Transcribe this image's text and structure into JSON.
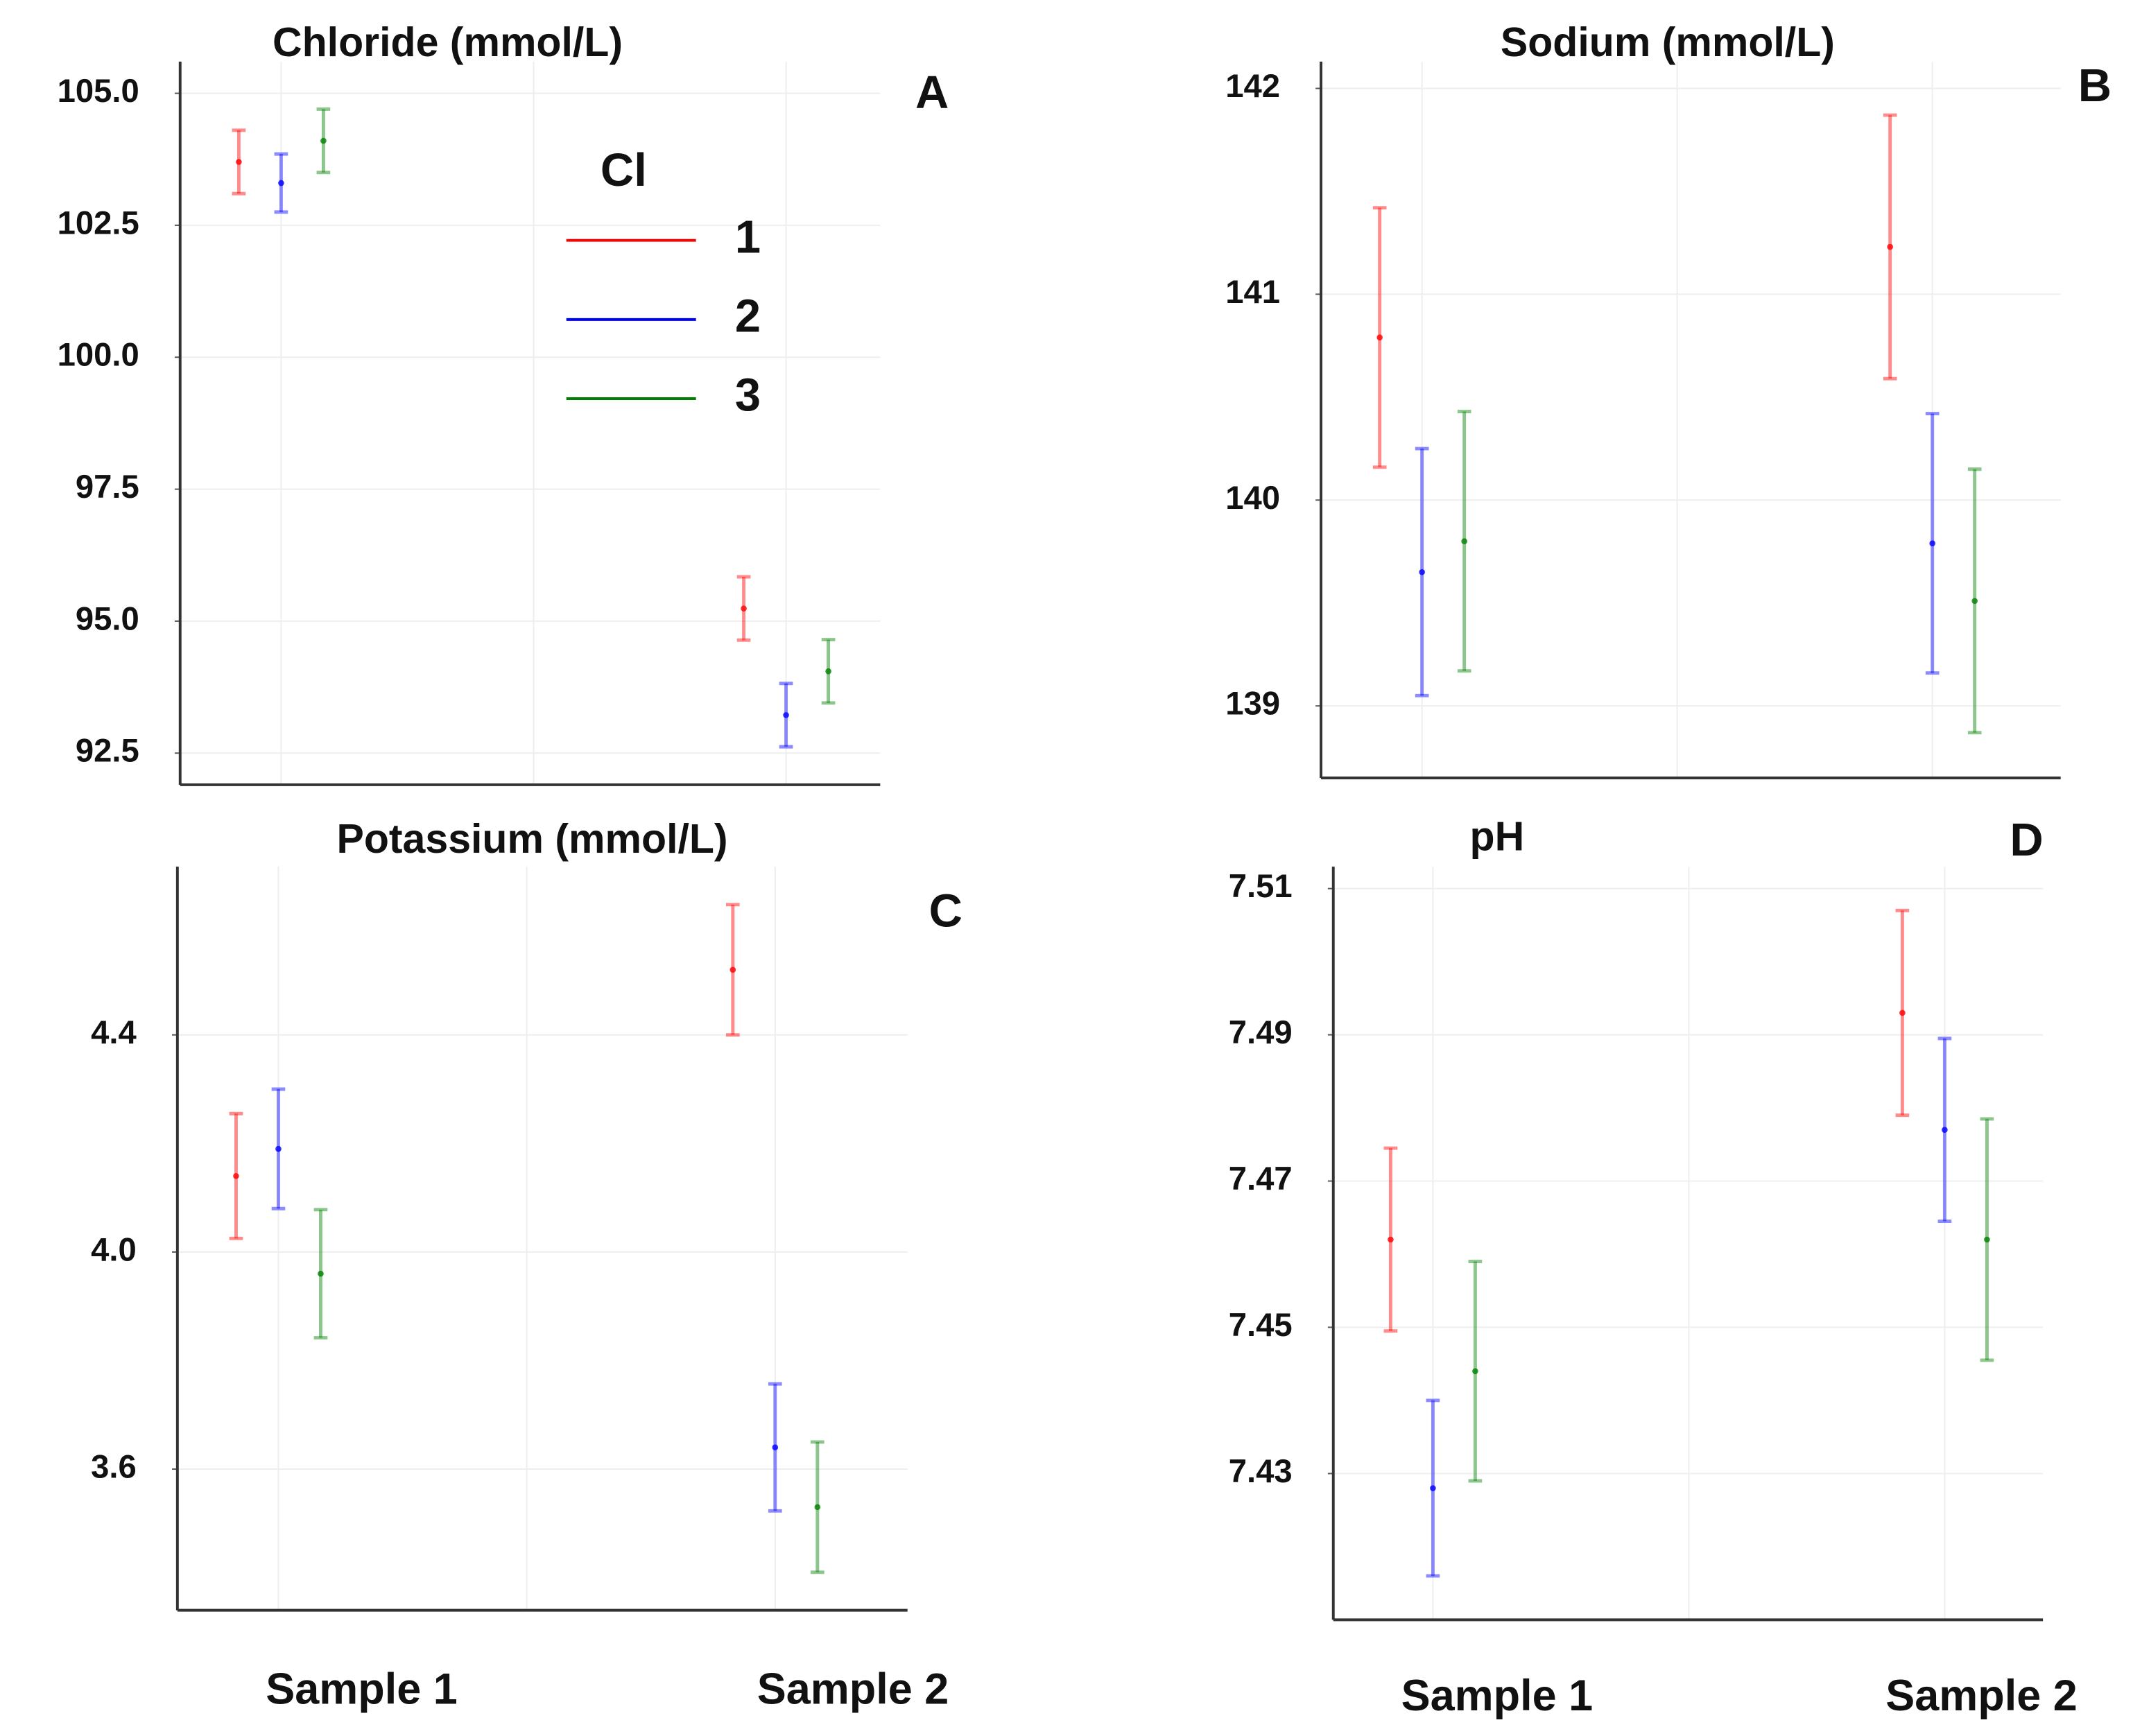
{
  "chart_data": [
    {
      "type": "errorbar",
      "title": "Chloride (mmol/L)",
      "panel_label": "A",
      "categories": [
        null,
        null
      ],
      "legend_title": "Cl",
      "legend": "upper right",
      "series": [
        {
          "name": "1",
          "color": "#ff0000",
          "values": [
            103.7,
            95.24
          ],
          "errors": [
            0.6,
            0.6
          ]
        },
        {
          "name": "2",
          "color": "#0000ff",
          "values": [
            103.3,
            93.22
          ],
          "errors": [
            0.55,
            0.6
          ]
        },
        {
          "name": "3",
          "color": "#008000",
          "values": [
            104.1,
            94.05
          ],
          "errors": [
            0.6,
            0.6
          ]
        }
      ],
      "ylim": [
        91.9,
        105.6
      ],
      "yticks": [
        92.5,
        {
          "value": 95,
          "label": "95.0"
        },
        97.5,
        {
          "value": 100,
          "label": "100.0"
        },
        102.5,
        {
          "value": 105,
          "label": "105.0"
        }
      ],
      "grid": true
    },
    {
      "type": "errorbar",
      "title": "Sodium (mmol/L)",
      "panel_label": "B",
      "categories": [
        null,
        null
      ],
      "series": [
        {
          "name": "1",
          "color": "#ff0000",
          "values": [
            140.79,
            141.23
          ],
          "errors": [
            0.63,
            0.64
          ]
        },
        {
          "name": "2",
          "color": "#0000ff",
          "values": [
            139.65,
            139.79
          ],
          "errors": [
            0.6,
            0.63
          ]
        },
        {
          "name": "3",
          "color": "#008000",
          "values": [
            139.8,
            139.51
          ],
          "errors": [
            0.63,
            0.64
          ]
        }
      ],
      "ylim": [
        138.65,
        142.13
      ],
      "yticks": [
        139,
        140,
        141,
        142
      ],
      "grid": true
    },
    {
      "type": "errorbar",
      "title": "Potassium (mmol/L)",
      "panel_label": "C",
      "categories": [
        "Sample 1",
        "Sample 2"
      ],
      "series": [
        {
          "name": "1",
          "color": "#ff0000",
          "values": [
            4.14,
            4.52
          ],
          "errors": [
            0.115,
            0.12
          ]
        },
        {
          "name": "2",
          "color": "#0000ff",
          "values": [
            4.19,
            3.64
          ],
          "errors": [
            0.11,
            0.117
          ]
        },
        {
          "name": "3",
          "color": "#008000",
          "values": [
            3.96,
            3.53
          ],
          "errors": [
            0.118,
            0.12
          ]
        }
      ],
      "ylim": [
        3.34,
        4.71
      ],
      "yticks": [
        3.6,
        {
          "value": 4,
          "label": "4.0"
        },
        4.4
      ],
      "grid": true
    },
    {
      "type": "errorbar",
      "title": "pH",
      "panel_label": "D",
      "categories": [
        "Sample 1",
        "Sample 2"
      ],
      "series": [
        {
          "name": "1",
          "color": "#ff0000",
          "values": [
            7.462,
            7.493
          ],
          "errors": [
            0.0125,
            0.014
          ]
        },
        {
          "name": "2",
          "color": "#0000ff",
          "values": [
            7.428,
            7.477
          ],
          "errors": [
            0.012,
            0.0125
          ]
        },
        {
          "name": "3",
          "color": "#008000",
          "values": [
            7.444,
            7.462
          ],
          "errors": [
            0.015,
            0.0165
          ]
        }
      ],
      "ylim": [
        7.41,
        7.513
      ],
      "yticks": [
        7.43,
        7.45,
        7.47,
        7.49,
        7.51
      ],
      "grid": true
    }
  ]
}
